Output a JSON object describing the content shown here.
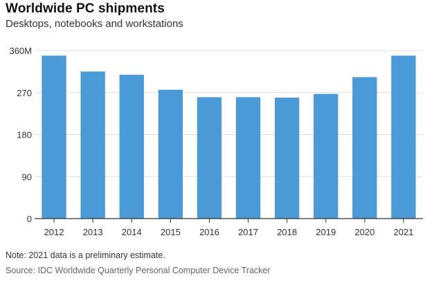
{
  "chart_data": {
    "type": "bar",
    "title": "Worldwide PC shipments",
    "subtitle": "Desktops, notebooks and workstations",
    "categories": [
      "2012",
      "2013",
      "2014",
      "2015",
      "2016",
      "2017",
      "2018",
      "2019",
      "2020",
      "2021"
    ],
    "values": [
      349,
      315,
      308,
      276,
      260,
      260,
      259,
      267,
      303,
      349
    ],
    "ylim": [
      0,
      360
    ],
    "yticks": [
      0,
      90,
      180,
      270,
      360
    ],
    "ytick_labels": [
      "0",
      "90",
      "180",
      "270",
      "360M"
    ],
    "xlabel": "",
    "ylabel": "",
    "grid": true,
    "bar_color": "#4b9ad8"
  },
  "footer": {
    "note": "Note: 2021 data is a preliminary estimate.",
    "source": "Source: IDC Worldwide Quarterly Personal Computer Device Tracker"
  }
}
